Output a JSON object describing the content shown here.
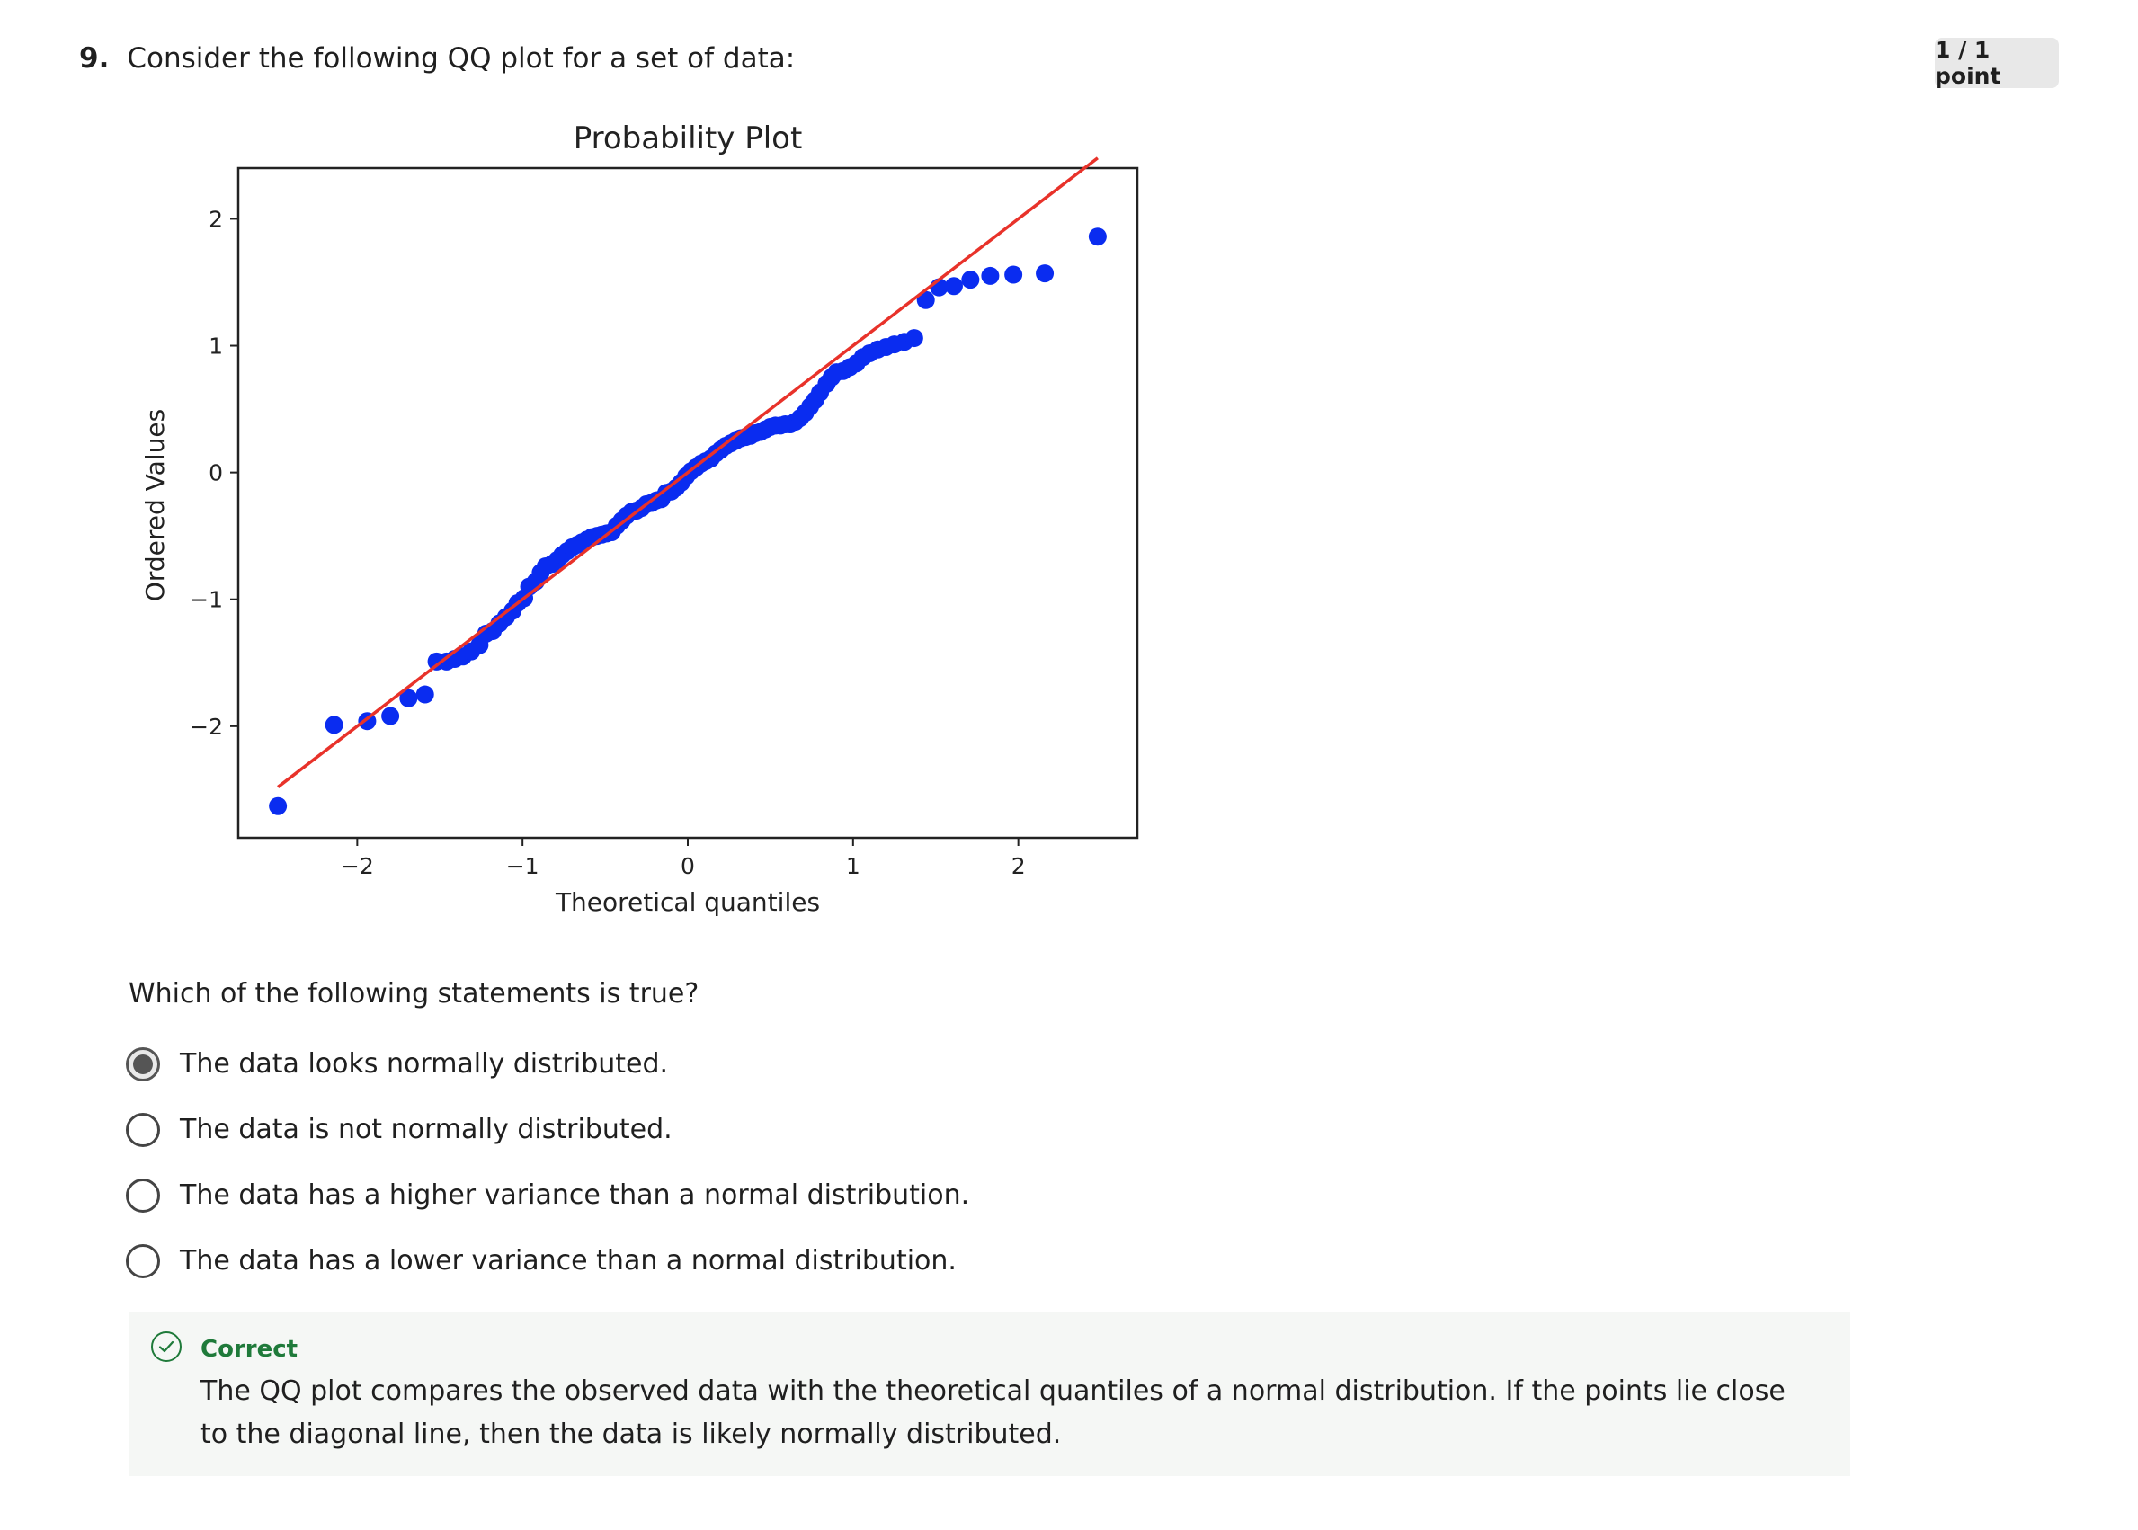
{
  "question": {
    "number": "9.",
    "text": "Consider the following QQ plot for a set of data:",
    "score": "1 / 1 point",
    "prompt": "Which of the following statements is true?",
    "options": [
      {
        "label": "The data looks normally distributed.",
        "selected": true
      },
      {
        "label": "The data is not normally distributed.",
        "selected": false
      },
      {
        "label": "The data has a higher variance than a normal distribution.",
        "selected": false
      },
      {
        "label": "The data has a lower variance than a normal distribution.",
        "selected": false
      }
    ]
  },
  "feedback": {
    "title": "Correct",
    "text": "The QQ plot compares the observed data with the theoretical quantiles of a normal distribution. If the points lie close to the diagonal line, then the data is likely normally distributed."
  },
  "chart_data": {
    "type": "scatter",
    "title": "Probability Plot",
    "xlabel": "Theoretical quantiles",
    "ylabel": "Ordered Values",
    "xlim": [
      -2.72,
      2.72
    ],
    "ylim": [
      -2.88,
      2.4
    ],
    "xticks": [
      -2,
      -1,
      0,
      1,
      2
    ],
    "yticks": [
      -2,
      -1,
      0,
      1,
      2
    ],
    "xtick_labels": [
      "−2",
      "−1",
      "0",
      "1",
      "2"
    ],
    "ytick_labels": [
      "−2",
      "−1",
      "0",
      "1",
      "2"
    ],
    "grid": false,
    "point_color": "#0a2cf0",
    "line_color": "#e8322a",
    "fit_line": {
      "slope": 1.0,
      "intercept": 0.0,
      "x_range": [
        -2.48,
        2.48
      ]
    },
    "points": [
      [
        -2.48,
        -2.63
      ],
      [
        -2.14,
        -1.99
      ],
      [
        -1.94,
        -1.96
      ],
      [
        -1.8,
        -1.92
      ],
      [
        -1.69,
        -1.78
      ],
      [
        -1.59,
        -1.75
      ],
      [
        -1.52,
        -1.49
      ],
      [
        -1.46,
        -1.49
      ],
      [
        -1.41,
        -1.47
      ],
      [
        -1.36,
        -1.45
      ],
      [
        -1.31,
        -1.41
      ],
      [
        -1.26,
        -1.36
      ],
      [
        -1.22,
        -1.27
      ],
      [
        -1.18,
        -1.25
      ],
      [
        -1.14,
        -1.19
      ],
      [
        -1.1,
        -1.14
      ],
      [
        -1.06,
        -1.09
      ],
      [
        -1.03,
        -1.03
      ],
      [
        -0.99,
        -0.99
      ],
      [
        -0.96,
        -0.9
      ],
      [
        -0.92,
        -0.86
      ],
      [
        -0.89,
        -0.79
      ],
      [
        -0.86,
        -0.74
      ],
      [
        -0.82,
        -0.72
      ],
      [
        -0.79,
        -0.69
      ],
      [
        -0.76,
        -0.65
      ],
      [
        -0.73,
        -0.62
      ],
      [
        -0.7,
        -0.59
      ],
      [
        -0.67,
        -0.57
      ],
      [
        -0.64,
        -0.55
      ],
      [
        -0.61,
        -0.53
      ],
      [
        -0.58,
        -0.51
      ],
      [
        -0.55,
        -0.5
      ],
      [
        -0.52,
        -0.49
      ],
      [
        -0.49,
        -0.48
      ],
      [
        -0.46,
        -0.47
      ],
      [
        -0.43,
        -0.42
      ],
      [
        -0.4,
        -0.38
      ],
      [
        -0.37,
        -0.34
      ],
      [
        -0.34,
        -0.31
      ],
      [
        -0.31,
        -0.3
      ],
      [
        -0.28,
        -0.28
      ],
      [
        -0.25,
        -0.25
      ],
      [
        -0.22,
        -0.24
      ],
      [
        -0.19,
        -0.22
      ],
      [
        -0.16,
        -0.21
      ],
      [
        -0.13,
        -0.16
      ],
      [
        -0.1,
        -0.15
      ],
      [
        -0.07,
        -0.12
      ],
      [
        -0.04,
        -0.08
      ],
      [
        -0.01,
        -0.03
      ],
      [
        0.02,
        0.01
      ],
      [
        0.05,
        0.04
      ],
      [
        0.08,
        0.07
      ],
      [
        0.11,
        0.09
      ],
      [
        0.14,
        0.11
      ],
      [
        0.17,
        0.15
      ],
      [
        0.2,
        0.18
      ],
      [
        0.23,
        0.21
      ],
      [
        0.26,
        0.23
      ],
      [
        0.29,
        0.25
      ],
      [
        0.32,
        0.27
      ],
      [
        0.35,
        0.28
      ],
      [
        0.38,
        0.29
      ],
      [
        0.41,
        0.31
      ],
      [
        0.44,
        0.32
      ],
      [
        0.47,
        0.34
      ],
      [
        0.5,
        0.36
      ],
      [
        0.53,
        0.37
      ],
      [
        0.56,
        0.37
      ],
      [
        0.59,
        0.38
      ],
      [
        0.62,
        0.38
      ],
      [
        0.65,
        0.4
      ],
      [
        0.68,
        0.43
      ],
      [
        0.71,
        0.47
      ],
      [
        0.74,
        0.52
      ],
      [
        0.77,
        0.57
      ],
      [
        0.8,
        0.63
      ],
      [
        0.84,
        0.7
      ],
      [
        0.87,
        0.75
      ],
      [
        0.9,
        0.79
      ],
      [
        0.94,
        0.8
      ],
      [
        0.98,
        0.83
      ],
      [
        1.02,
        0.86
      ],
      [
        1.06,
        0.91
      ],
      [
        1.1,
        0.94
      ],
      [
        1.15,
        0.97
      ],
      [
        1.2,
        0.99
      ],
      [
        1.25,
        1.01
      ],
      [
        1.31,
        1.03
      ],
      [
        1.37,
        1.06
      ],
      [
        1.44,
        1.36
      ],
      [
        1.52,
        1.46
      ],
      [
        1.61,
        1.47
      ],
      [
        1.71,
        1.52
      ],
      [
        1.83,
        1.55
      ],
      [
        1.97,
        1.56
      ],
      [
        2.16,
        1.57
      ],
      [
        2.48,
        1.86
      ]
    ]
  }
}
